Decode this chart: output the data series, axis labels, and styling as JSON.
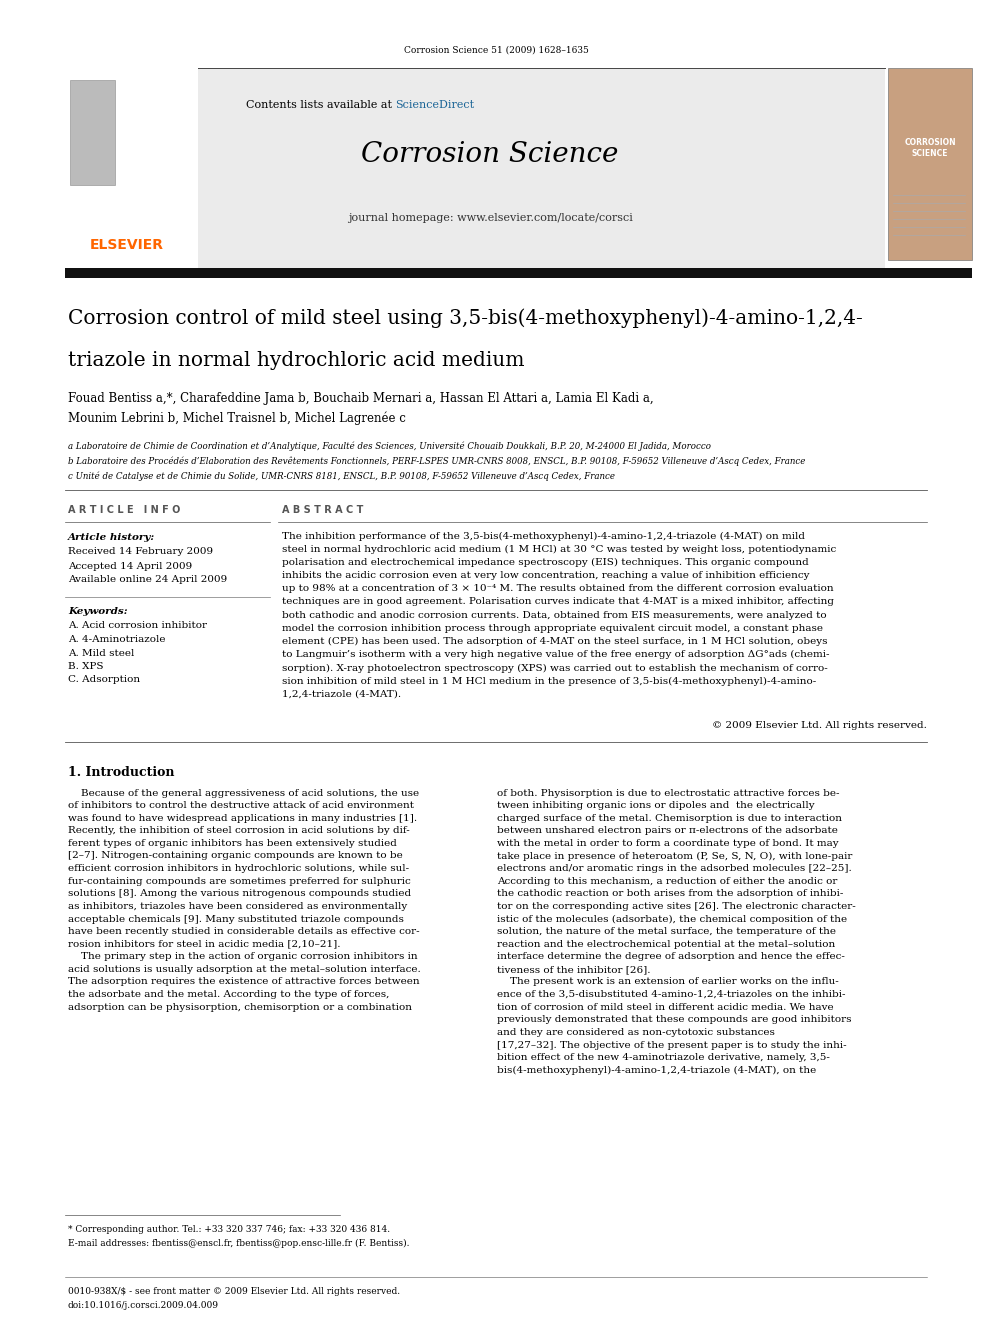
{
  "page_width": 9.92,
  "page_height": 13.23,
  "background_color": "#ffffff",
  "journal_ref": "Corrosion Science 51 (2009) 1628–1635",
  "sciencedirect_color": "#1a6496",
  "journal_homepage": "journal homepage: www.elsevier.com/locate/corsci",
  "elsevier_color": "#ff6600",
  "paper_title_line1": "Corrosion control of mild steel using 3,5-bis(4-methoxyphenyl)-4-amino-1,2,4-",
  "paper_title_line2": "triazole in normal hydrochloric acid medium",
  "authors": "Fouad Bentiss a,*, Charafeddine Jama b, Bouchaib Mernari a, Hassan El Attari a, Lamia El Kadi a,",
  "authors2": "Mounim Lebrini b, Michel Traisnel b, Michel Lagrenée c",
  "affil1": "a Laboratoire de Chimie de Coordination et d’Analytique, Faculté des Sciences, Université Chouaib Doukkali, B.P. 20, M-24000 El Jadida, Morocco",
  "affil2": "b Laboratoire des Procédés d’Elaboration des Revêtements Fonctionnels, PERF-LSPES UMR-CNRS 8008, ENSCL, B.P. 90108, F-59652 Villeneuve d’Ascq Cedex, France",
  "affil3": "c Unité de Catalyse et de Chimie du Solide, UMR-CNRS 8181, ENSCL, B.P. 90108, F-59652 Villeneuve d’Ascq Cedex, France",
  "article_info_title": "A R T I C L E   I N F O",
  "abstract_title": "A B S T R A C T",
  "article_history_label": "Article history:",
  "received": "Received 14 February 2009",
  "accepted": "Accepted 14 April 2009",
  "available": "Available online 24 April 2009",
  "keywords_label": "Keywords:",
  "kw1": "A. Acid corrosion inhibitor",
  "kw2": "A. 4-Aminotriazole",
  "kw3": "A. Mild steel",
  "kw4": "B. XPS",
  "kw5": "C. Adsorption",
  "copyright": "© 2009 Elsevier Ltd. All rights reserved.",
  "intro_title": "1. Introduction",
  "footnote1": "* Corresponding author. Tel.: +33 320 337 746; fax: +33 320 436 814.",
  "footnote2": "E-mail addresses: fbentiss@enscl.fr, fbentiss@pop.ensc-lille.fr (F. Bentiss).",
  "footer1": "0010-938X/$ - see front matter © 2009 Elsevier Ltd. All rights reserved.",
  "footer2": "doi:10.1016/j.corsci.2009.04.009",
  "abstract_lines": [
    "The inhibition performance of the 3,5-bis(4-methoxyphenyl)-4-amino-1,2,4-triazole (4-MAT) on mild",
    "steel in normal hydrochloric acid medium (1 M HCl) at 30 °C was tested by weight loss, potentiodynamic",
    "polarisation and electrochemical impedance spectroscopy (EIS) techniques. This organic compound",
    "inhibits the acidic corrosion even at very low concentration, reaching a value of inhibition efficiency",
    "up to 98% at a concentration of 3 × 10⁻⁴ M. The results obtained from the different corrosion evaluation",
    "techniques are in good agreement. Polarisation curves indicate that 4-MAT is a mixed inhibitor, affecting",
    "both cathodic and anodic corrosion currents. Data, obtained from EIS measurements, were analyzed to",
    "model the corrosion inhibition process through appropriate equivalent circuit model, a constant phase",
    "element (CPE) has been used. The adsorption of 4-MAT on the steel surface, in 1 M HCl solution, obeys",
    "to Langmuir’s isotherm with a very high negative value of the free energy of adsorption ΔG°ads (chemi-",
    "sorption). X-ray photoelectron spectroscopy (XPS) was carried out to establish the mechanism of corro-",
    "sion inhibition of mild steel in 1 M HCl medium in the presence of 3,5-bis(4-methoxyphenyl)-4-amino-",
    "1,2,4-triazole (4-MAT)."
  ],
  "intro_col1_lines": [
    "    Because of the general aggressiveness of acid solutions, the use",
    "of inhibitors to control the destructive attack of acid environment",
    "was found to have widespread applications in many industries [1].",
    "Recently, the inhibition of steel corrosion in acid solutions by dif-",
    "ferent types of organic inhibitors has been extensively studied",
    "[2–7]. Nitrogen-containing organic compounds are known to be",
    "efficient corrosion inhibitors in hydrochloric solutions, while sul-",
    "fur-containing compounds are sometimes preferred for sulphuric",
    "solutions [8]. Among the various nitrogenous compounds studied",
    "as inhibitors, triazoles have been considered as environmentally",
    "acceptable chemicals [9]. Many substituted triazole compounds",
    "have been recently studied in considerable details as effective cor-",
    "rosion inhibitors for steel in acidic media [2,10–21].",
    "    The primary step in the action of organic corrosion inhibitors in",
    "acid solutions is usually adsorption at the metal–solution interface.",
    "The adsorption requires the existence of attractive forces between",
    "the adsorbate and the metal. According to the type of forces,",
    "adsorption can be physisorption, chemisorption or a combination"
  ],
  "intro_col2_lines": [
    "of both. Physisorption is due to electrostatic attractive forces be-",
    "tween inhibiting organic ions or dipoles and  the electrically",
    "charged surface of the metal. Chemisorption is due to interaction",
    "between unshared electron pairs or π-electrons of the adsorbate",
    "with the metal in order to form a coordinate type of bond. It may",
    "take place in presence of heteroatom (P, Se, S, N, O), with lone-pair",
    "electrons and/or aromatic rings in the adsorbed molecules [22–25].",
    "According to this mechanism, a reduction of either the anodic or",
    "the cathodic reaction or both arises from the adsorption of inhibi-",
    "tor on the corresponding active sites [26]. The electronic character-",
    "istic of the molecules (adsorbate), the chemical composition of the",
    "solution, the nature of the metal surface, the temperature of the",
    "reaction and the electrochemical potential at the metal–solution",
    "interface determine the degree of adsorption and hence the effec-",
    "tiveness of the inhibitor [26].",
    "    The present work is an extension of earlier works on the influ-",
    "ence of the 3,5-disubstituted 4-amino-1,2,4-triazoles on the inhibi-",
    "tion of corrosion of mild steel in different acidic media. We have",
    "previously demonstrated that these compounds are good inhibitors",
    "and they are considered as non-cytotoxic substances",
    "[17,27–32]. The objective of the present paper is to study the inhi-",
    "bition effect of the new 4-aminotriazole derivative, namely, 3,5-",
    "bis(4-methoxyphenyl)-4-amino-1,2,4-triazole (4-MAT), on the"
  ]
}
